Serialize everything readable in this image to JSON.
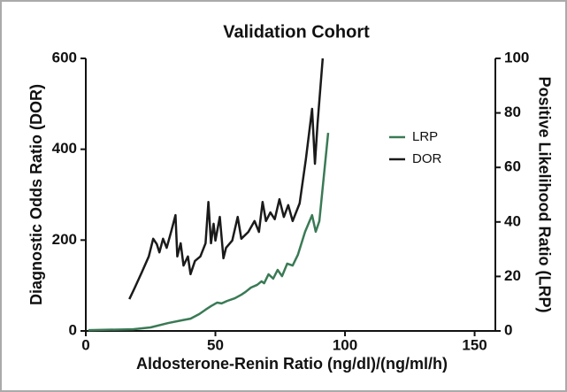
{
  "chart_data": {
    "type": "line",
    "title": "Validation Cohort",
    "xlabel": "Aldosterone-Renin Ratio (ng/dl)/(ng/ml/h)",
    "ylabel": "Diagnostic Odds Ratio (DOR)",
    "y2label": "Positive Likelihood Ratio (LRP)",
    "xlim": [
      0,
      158
    ],
    "xticks": [
      0,
      50,
      100,
      150
    ],
    "ylim": [
      0,
      600
    ],
    "yticks": [
      0,
      200,
      400,
      600
    ],
    "y2lim": [
      0,
      100
    ],
    "y2ticks": [
      0,
      20,
      40,
      60,
      80,
      100
    ],
    "legend": "upper right",
    "series": [
      {
        "name": "LRP",
        "color": "#3a7a55",
        "axis": "y2",
        "x": [
          1,
          18.2,
          25,
          31.8,
          37,
          40.4,
          43.8,
          46.2,
          48.3,
          50.7,
          52.4,
          54.5,
          57.5,
          60,
          61.6,
          63.7,
          66.1,
          67.8,
          68.8,
          70.5,
          72.3,
          74,
          75.7,
          77.7,
          79.8,
          81.8,
          84.6,
          87.3,
          88.7,
          90.1,
          91.8,
          93.5
        ],
        "values": [
          0.3,
          0.6,
          1.3,
          2.9,
          3.9,
          4.5,
          6.2,
          7.8,
          9.1,
          10.4,
          10.1,
          11,
          12,
          13.3,
          14.3,
          15.9,
          16.9,
          18.2,
          17.5,
          20.8,
          19.2,
          22.4,
          20.1,
          24.7,
          24,
          27.9,
          36.4,
          42.5,
          36.4,
          40.3,
          56.5,
          72.7
        ]
      },
      {
        "name": "DOR",
        "color": "#1a1a1a",
        "x": [
          16.8,
          18.8,
          21.6,
          24.3,
          26,
          27.4,
          28.4,
          29.8,
          31.2,
          32.9,
          34.6,
          35.3,
          36.6,
          37.7,
          39.4,
          40.4,
          42.1,
          44.2,
          46.2,
          47.3,
          48.3,
          49.3,
          50,
          51.7,
          53.1,
          54.1,
          56.5,
          58.6,
          60,
          62.7,
          65.1,
          66.8,
          68.2,
          69.5,
          71.2,
          72.9,
          74.7,
          76.4,
          78.1,
          79.8,
          82.5,
          84.9,
          87.3,
          88.4,
          89.4,
          91.4
        ],
        "values": [
          70,
          94,
          129,
          164,
          203,
          191,
          173,
          203,
          183,
          218,
          255,
          164,
          193,
          144,
          164,
          125,
          154,
          164,
          193,
          284,
          193,
          236,
          199,
          251,
          160,
          183,
          199,
          251,
          203,
          218,
          242,
          218,
          284,
          242,
          261,
          246,
          290,
          251,
          277,
          242,
          281,
          378,
          489,
          368,
          456,
          600
        ]
      }
    ]
  }
}
